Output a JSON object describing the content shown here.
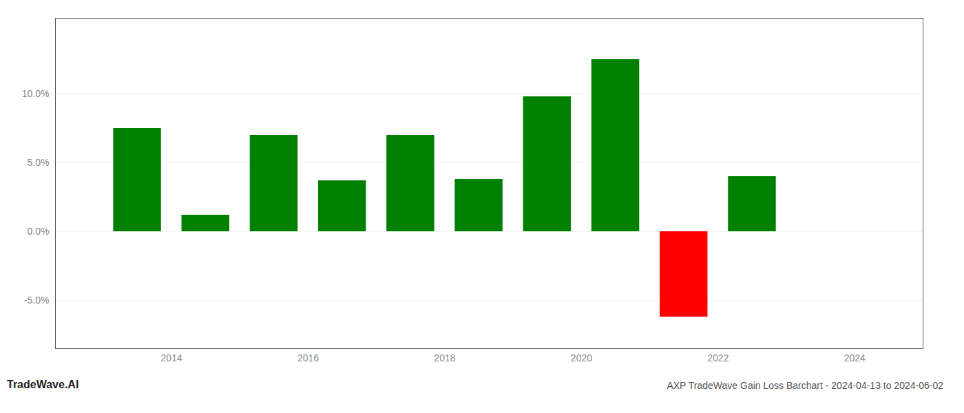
{
  "chart_data": {
    "type": "bar",
    "title": "AXP TradeWave Gain Loss Barchart - 2024-04-13 to 2024-06-02",
    "annotations": [
      "TradeWave.AI"
    ],
    "x": [
      2013,
      2014,
      2015,
      2016,
      2017,
      2018,
      2019,
      2020,
      2021,
      2022
    ],
    "values": [
      0.075,
      0.012,
      0.07,
      0.037,
      0.07,
      0.038,
      0.098,
      0.125,
      -0.062,
      0.04
    ],
    "colors": [
      "#008000",
      "#008000",
      "#008000",
      "#008000",
      "#008000",
      "#008000",
      "#008000",
      "#008000",
      "#ff0000",
      "#008000"
    ],
    "xlim": [
      2012.3,
      2025.0
    ],
    "xticks": [
      2014,
      2016,
      2018,
      2020,
      2022,
      2024
    ],
    "ylim": [
      -0.085,
      0.155
    ],
    "yticks": [
      {
        "value": -0.05,
        "label": "-5.0%"
      },
      {
        "value": 0.0,
        "label": "0.0%"
      },
      {
        "value": 0.05,
        "label": "5.0%"
      },
      {
        "value": 0.1,
        "label": "10.0%"
      }
    ],
    "grid": true
  }
}
